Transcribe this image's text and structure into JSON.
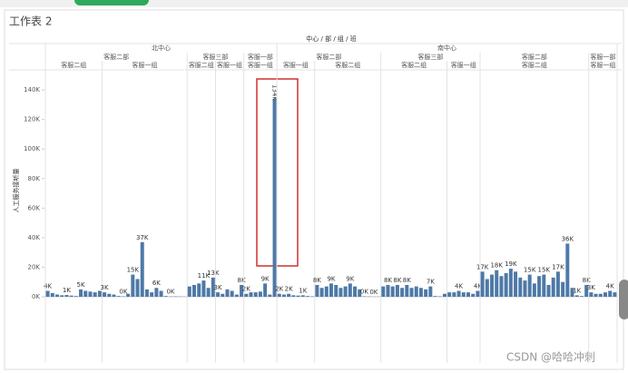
{
  "chart_data": {
    "type": "bar",
    "title": "工作表 2",
    "header": "中心 / 部 / 组 / 班",
    "y_label": "人工服务接听量",
    "color": "#4e79a7",
    "grid": false,
    "watermark": "CSDN @哈哈冲刺",
    "ylim": [
      0,
      145000
    ],
    "yticks": [
      {
        "value": 0,
        "label": "0K"
      },
      {
        "value": 20000,
        "label": "20K"
      },
      {
        "value": 40000,
        "label": "40K"
      },
      {
        "value": 60000,
        "label": "60K"
      },
      {
        "value": 80000,
        "label": "80K"
      },
      {
        "value": 100000,
        "label": "100K"
      },
      {
        "value": 120000,
        "label": "120K"
      },
      {
        "value": 140000,
        "label": "140K"
      }
    ],
    "centers": [
      {
        "name": "北中心",
        "departments": [
          {
            "name": "客服二部",
            "teams": [
              {
                "name": "客服二组",
                "bars": [
                  {
                    "value": 4000,
                    "value_label": "4K"
                  },
                  {
                    "value": 2500
                  },
                  {
                    "value": 1500
                  },
                  {
                    "value": 1000
                  },
                  {
                    "value": 1200,
                    "value_label": "1K"
                  },
                  {
                    "value": 800
                  },
                  {
                    "value": 500
                  },
                  {
                    "value": 5000,
                    "value_label": "5K"
                  },
                  {
                    "value": 4000
                  },
                  {
                    "value": 3500
                  },
                  {
                    "value": 3000
                  },
                  {
                    "value": 4000
                  }
                ]
              },
              {
                "name": "客服一组",
                "bars": [
                  {
                    "value": 3000,
                    "value_label": "3K"
                  },
                  {
                    "value": 2000
                  },
                  {
                    "value": 1500
                  },
                  {
                    "value": 500
                  },
                  {
                    "value": 300,
                    "value_label": "0K"
                  },
                  {
                    "value": 2000
                  },
                  {
                    "value": 15000,
                    "value_label": "15K"
                  },
                  {
                    "value": 12000
                  },
                  {
                    "value": 37000,
                    "value_label": "37K"
                  },
                  {
                    "value": 5000
                  },
                  {
                    "value": 3000
                  },
                  {
                    "value": 6000,
                    "value_label": "6K"
                  },
                  {
                    "value": 4000
                  },
                  {
                    "value": 500
                  },
                  {
                    "value": 200,
                    "value_label": "0K"
                  },
                  {
                    "value": 300
                  },
                  {
                    "value": 200
                  },
                  {
                    "value": 100
                  }
                ]
              }
            ]
          },
          {
            "name": "客服三部",
            "teams": [
              {
                "name": "客服二组",
                "bars": [
                  {
                    "value": 7000
                  },
                  {
                    "value": 8000
                  },
                  {
                    "value": 9000
                  },
                  {
                    "value": 11000,
                    "value_label": "11K"
                  },
                  {
                    "value": 6000
                  },
                  {
                    "value": 13000,
                    "value_label": "13K"
                  }
                ]
              },
              {
                "name": "客服一组",
                "bars": [
                  {
                    "value": 3000,
                    "value_label": "3K"
                  },
                  {
                    "value": 2000
                  },
                  {
                    "value": 5000
                  },
                  {
                    "value": 4000
                  },
                  {
                    "value": 1500
                  },
                  {
                    "value": 8000,
                    "value_label": "8K"
                  }
                ]
              }
            ]
          },
          {
            "name": "客服一部",
            "teams": [
              {
                "name": "客服一组",
                "bars": [
                  {
                    "value": 2000,
                    "value_label": "2K"
                  },
                  {
                    "value": 3000
                  },
                  {
                    "value": 3000
                  },
                  {
                    "value": 3500
                  },
                  {
                    "value": 9000,
                    "value_label": "9K"
                  },
                  {
                    "value": 1500
                  },
                  {
                    "value": 134000,
                    "value_label": "134K"
                  }
                ]
              }
            ]
          }
        ]
      },
      {
        "name": "南中心",
        "departments": [
          {
            "name": "客服二部",
            "teams": [
              {
                "name": "客服一组",
                "bars": [
                  {
                    "value": 2000,
                    "value_label": "2K"
                  },
                  {
                    "value": 1500
                  },
                  {
                    "value": 2000,
                    "value_label": "2K"
                  },
                  {
                    "value": 1000
                  },
                  {
                    "value": 800
                  },
                  {
                    "value": 1000,
                    "value_label": "1K"
                  },
                  {
                    "value": 500
                  },
                  {
                    "value": 300
                  }
                ]
              },
              {
                "name": "客服二组",
                "bars": [
                  {
                    "value": 8000,
                    "value_label": "8K"
                  },
                  {
                    "value": 6000
                  },
                  {
                    "value": 7000
                  },
                  {
                    "value": 9000,
                    "value_label": "9K"
                  },
                  {
                    "value": 8000
                  },
                  {
                    "value": 6000
                  },
                  {
                    "value": 7000
                  },
                  {
                    "value": 9000,
                    "value_label": "9K"
                  },
                  {
                    "value": 7000
                  },
                  {
                    "value": 5000
                  },
                  {
                    "value": 300,
                    "value_label": "0K"
                  },
                  {
                    "value": 200
                  },
                  {
                    "value": 100,
                    "value_label": "0K"
                  },
                  {
                    "value": 100
                  }
                ]
              }
            ]
          },
          {
            "name": "客服三部",
            "teams": [
              {
                "name": "客服二组",
                "bars": [
                  {
                    "value": 7000
                  },
                  {
                    "value": 8000,
                    "value_label": "8K"
                  },
                  {
                    "value": 7000
                  },
                  {
                    "value": 8000,
                    "value_label": "8K"
                  },
                  {
                    "value": 6000
                  },
                  {
                    "value": 8000,
                    "value_label": "8K"
                  },
                  {
                    "value": 6000
                  },
                  {
                    "value": 7000
                  },
                  {
                    "value": 6000
                  },
                  {
                    "value": 5000
                  },
                  {
                    "value": 7000,
                    "value_label": "7K"
                  },
                  {
                    "value": 500
                  },
                  {
                    "value": 300
                  },
                  {
                    "value": 2000
                  }
                ]
              },
              {
                "name": "客服一组",
                "bars": [
                  {
                    "value": 3000
                  },
                  {
                    "value": 3000
                  },
                  {
                    "value": 4000,
                    "value_label": "4K"
                  },
                  {
                    "value": 3000
                  },
                  {
                    "value": 3000
                  },
                  {
                    "value": 2000
                  },
                  {
                    "value": 4000,
                    "value_label": "4K"
                  }
                ]
              }
            ]
          },
          {
            "name": "客服二部",
            "teams": [
              {
                "name": "客服二组",
                "bars": [
                  {
                    "value": 17000,
                    "value_label": "17K"
                  },
                  {
                    "value": 12000
                  },
                  {
                    "value": 15000
                  },
                  {
                    "value": 18000,
                    "value_label": "18K"
                  },
                  {
                    "value": 14000
                  },
                  {
                    "value": 16000
                  },
                  {
                    "value": 19000,
                    "value_label": "19K"
                  },
                  {
                    "value": 17000
                  },
                  {
                    "value": 13000
                  },
                  {
                    "value": 11000
                  },
                  {
                    "value": 15000,
                    "value_label": "15K"
                  },
                  {
                    "value": 9000
                  },
                  {
                    "value": 14000
                  },
                  {
                    "value": 15000,
                    "value_label": "15K"
                  },
                  {
                    "value": 8000
                  },
                  {
                    "value": 13000
                  },
                  {
                    "value": 17000,
                    "value_label": "17K"
                  },
                  {
                    "value": 10000
                  },
                  {
                    "value": 36000,
                    "value_label": "36K"
                  },
                  {
                    "value": 6000
                  },
                  {
                    "value": 1000,
                    "value_label": "1K"
                  },
                  {
                    "value": 500
                  },
                  {
                    "value": 8000,
                    "value_label": "8K"
                  }
                ]
              }
            ]
          },
          {
            "name": "客服一部",
            "teams": [
              {
                "name": "客服一组",
                "bars": [
                  {
                    "value": 3000,
                    "value_label": "3K"
                  },
                  {
                    "value": 2000
                  },
                  {
                    "value": 2000
                  },
                  {
                    "value": 3000
                  },
                  {
                    "value": 4000,
                    "value_label": "4K"
                  },
                  {
                    "value": 3000
                  }
                ]
              }
            ]
          }
        ]
      }
    ]
  }
}
